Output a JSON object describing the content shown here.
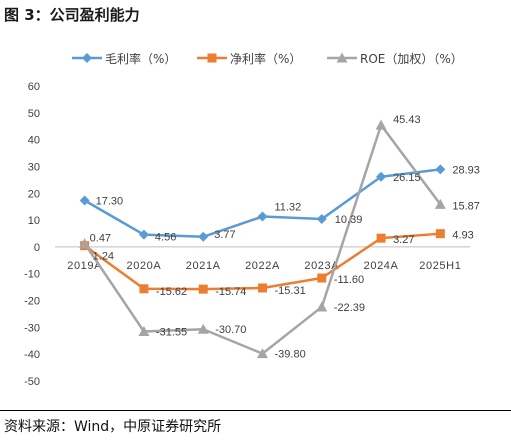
{
  "source": "资料来源：Wind，中原证券研究所",
  "chart_data": {
    "type": "line",
    "title": "图 3：公司盈利能力",
    "categories": [
      "2019A",
      "2020A",
      "2021A",
      "2022A",
      "2023A",
      "2024A",
      "2025H1"
    ],
    "ylim": [
      -50,
      60
    ],
    "ytick_labels": [
      "60",
      "50",
      "40",
      "30",
      "20",
      "10",
      "0",
      "-10",
      "-20",
      "-30",
      "-40",
      "-50"
    ],
    "grid": false,
    "legend_position": "top",
    "series": [
      {
        "name": "毛利率（%）",
        "color": "#5B9BD5",
        "marker": "diamond",
        "values": [
          17.3,
          4.56,
          3.77,
          11.32,
          10.39,
          26.15,
          28.93
        ],
        "labels": [
          "17.30",
          "4.56",
          "3.77",
          "11.32",
          "10.39",
          "26.15",
          "28.93"
        ]
      },
      {
        "name": "净利率（%）",
        "color": "#ED7D31",
        "marker": "square",
        "values": [
          0.47,
          -15.62,
          -15.74,
          -15.31,
          -11.6,
          3.27,
          4.93
        ],
        "labels": [
          "0.47",
          "-15.62",
          "-15.74",
          "-15.31",
          "-11.60",
          "3.27",
          "4.93"
        ]
      },
      {
        "name": "ROE（加权）（%）",
        "color": "#A5A5A5",
        "marker": "triangle",
        "values": [
          1.24,
          -31.55,
          -30.7,
          -39.8,
          -22.39,
          45.43,
          15.87
        ],
        "labels": [
          "1.24",
          "-31.55",
          "-30.70",
          "-39.80",
          "-22.39",
          "45.43",
          "15.87"
        ]
      }
    ]
  }
}
